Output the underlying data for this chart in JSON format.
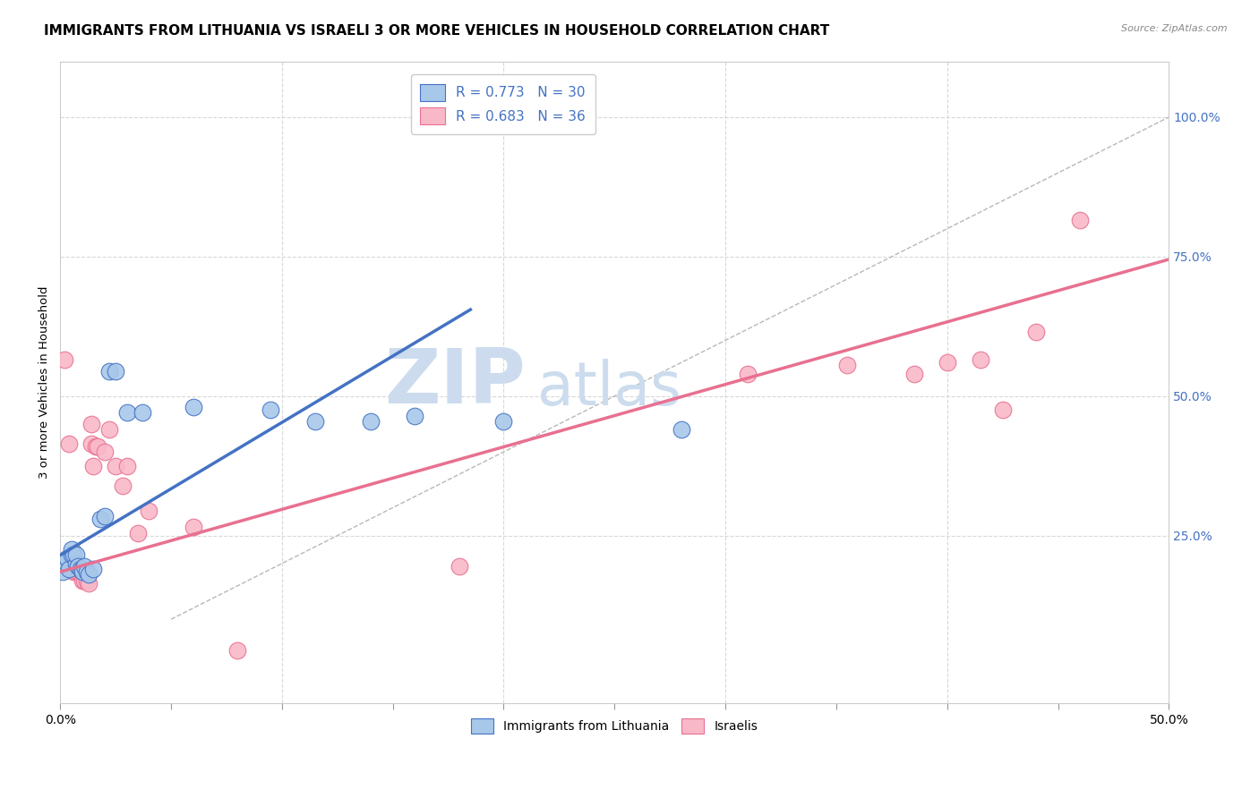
{
  "title": "IMMIGRANTS FROM LITHUANIA VS ISRAELI 3 OR MORE VEHICLES IN HOUSEHOLD CORRELATION CHART",
  "source": "Source: ZipAtlas.com",
  "ylabel": "3 or more Vehicles in Household",
  "xlim": [
    0.0,
    0.5
  ],
  "ylim": [
    -0.05,
    1.1
  ],
  "xtick_labels_shown": [
    "0.0%",
    "50.0%"
  ],
  "xtick_vals_shown": [
    0.0,
    0.5
  ],
  "xtick_minor_vals": [
    0.05,
    0.1,
    0.15,
    0.2,
    0.25,
    0.3,
    0.35,
    0.4,
    0.45
  ],
  "ytick_labels": [
    "25.0%",
    "50.0%",
    "75.0%",
    "100.0%"
  ],
  "ytick_vals": [
    0.25,
    0.5,
    0.75,
    1.0
  ],
  "legend_entries": [
    {
      "label": "R = 0.773   N = 30",
      "color": "#a8c8ea"
    },
    {
      "label": "R = 0.683   N = 36",
      "color": "#f9b8c8"
    }
  ],
  "legend_bottom": [
    {
      "label": "Immigrants from Lithuania",
      "color": "#a8c8ea"
    },
    {
      "label": "Israelis",
      "color": "#f9b8c8"
    }
  ],
  "watermark_zip": "ZIP",
  "watermark_atlas": "atlas",
  "blue_scatter": [
    [
      0.001,
      0.185
    ],
    [
      0.002,
      0.205
    ],
    [
      0.003,
      0.21
    ],
    [
      0.004,
      0.19
    ],
    [
      0.005,
      0.215
    ],
    [
      0.005,
      0.225
    ],
    [
      0.006,
      0.215
    ],
    [
      0.007,
      0.2
    ],
    [
      0.007,
      0.215
    ],
    [
      0.008,
      0.195
    ],
    [
      0.009,
      0.19
    ],
    [
      0.01,
      0.19
    ],
    [
      0.01,
      0.185
    ],
    [
      0.011,
      0.195
    ],
    [
      0.012,
      0.185
    ],
    [
      0.013,
      0.18
    ],
    [
      0.015,
      0.19
    ],
    [
      0.018,
      0.28
    ],
    [
      0.02,
      0.285
    ],
    [
      0.022,
      0.545
    ],
    [
      0.025,
      0.545
    ],
    [
      0.03,
      0.47
    ],
    [
      0.037,
      0.47
    ],
    [
      0.06,
      0.48
    ],
    [
      0.095,
      0.475
    ],
    [
      0.115,
      0.455
    ],
    [
      0.14,
      0.455
    ],
    [
      0.16,
      0.465
    ],
    [
      0.2,
      0.455
    ],
    [
      0.28,
      0.44
    ]
  ],
  "pink_scatter": [
    [
      0.002,
      0.565
    ],
    [
      0.004,
      0.415
    ],
    [
      0.005,
      0.21
    ],
    [
      0.006,
      0.185
    ],
    [
      0.006,
      0.195
    ],
    [
      0.007,
      0.185
    ],
    [
      0.008,
      0.185
    ],
    [
      0.009,
      0.19
    ],
    [
      0.01,
      0.175
    ],
    [
      0.01,
      0.17
    ],
    [
      0.011,
      0.17
    ],
    [
      0.012,
      0.17
    ],
    [
      0.013,
      0.165
    ],
    [
      0.014,
      0.45
    ],
    [
      0.014,
      0.415
    ],
    [
      0.015,
      0.375
    ],
    [
      0.016,
      0.41
    ],
    [
      0.017,
      0.41
    ],
    [
      0.02,
      0.4
    ],
    [
      0.022,
      0.44
    ],
    [
      0.025,
      0.375
    ],
    [
      0.028,
      0.34
    ],
    [
      0.03,
      0.375
    ],
    [
      0.035,
      0.255
    ],
    [
      0.04,
      0.295
    ],
    [
      0.06,
      0.265
    ],
    [
      0.08,
      0.045
    ],
    [
      0.18,
      0.195
    ],
    [
      0.31,
      0.54
    ],
    [
      0.355,
      0.555
    ],
    [
      0.385,
      0.54
    ],
    [
      0.4,
      0.56
    ],
    [
      0.415,
      0.565
    ],
    [
      0.425,
      0.475
    ],
    [
      0.44,
      0.615
    ],
    [
      0.46,
      0.815
    ]
  ],
  "blue_line": {
    "x0": 0.0,
    "x1": 0.185,
    "y0": 0.215,
    "y1": 0.655
  },
  "pink_line": {
    "x0": 0.0,
    "x1": 0.5,
    "y0": 0.185,
    "y1": 0.745
  },
  "diagonal_line": {
    "x0": 0.05,
    "x1": 0.5,
    "y0": 0.1,
    "y1": 1.0
  },
  "blue_color": "#4472c4",
  "pink_color": "#e87090",
  "blue_scatter_facecolor": "#a8c8ea",
  "pink_scatter_facecolor": "#f9b8c8",
  "diagonal_color": "#b8b8b8",
  "title_fontsize": 11,
  "axis_label_fontsize": 9.5,
  "tick_fontsize": 10,
  "watermark_color": "#ccdcee",
  "right_ytick_color": "#4472c4",
  "background_color": "#ffffff"
}
